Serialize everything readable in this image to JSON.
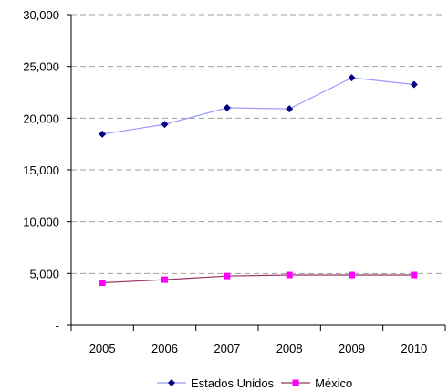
{
  "chart_data": {
    "type": "line",
    "title": "",
    "xlabel": "",
    "ylabel": "",
    "categories": [
      "2005",
      "2006",
      "2007",
      "2008",
      "2009",
      "2010"
    ],
    "ylim": [
      0,
      30000
    ],
    "yticks": [
      0,
      5000,
      10000,
      15000,
      20000,
      25000,
      30000
    ],
    "ytick_labels": [
      "-",
      "5,000",
      "10,000",
      "15,000",
      "20,000",
      "25,000",
      "30,000"
    ],
    "grid": true,
    "legend_position": "bottom",
    "series": [
      {
        "name": "Estados Unidos",
        "values": [
          18450,
          19400,
          21000,
          20900,
          23900,
          23250
        ],
        "line_color": "#9999ff",
        "marker": "diamond",
        "marker_color": "#000080"
      },
      {
        "name": "México",
        "values": [
          4100,
          4400,
          4750,
          4850,
          4850,
          4850
        ],
        "line_color": "#993366",
        "marker": "square",
        "marker_color": "#ff00ff"
      }
    ]
  }
}
